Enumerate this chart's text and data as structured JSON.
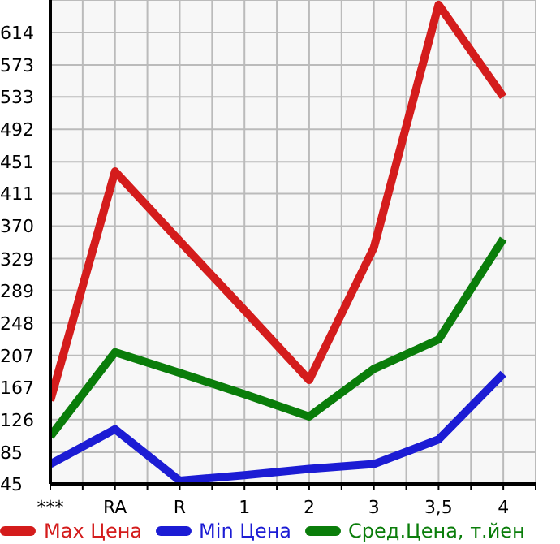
{
  "chart_data": {
    "type": "line",
    "categories": [
      "***",
      "RA",
      "R",
      "1",
      "2",
      "3",
      "3,5",
      "4"
    ],
    "series": [
      {
        "name": "Max Цена",
        "color": "#d41c1c",
        "values": [
          150,
          439,
          351,
          264,
          176,
          343,
          649,
          533
        ]
      },
      {
        "name": "Min Цена",
        "color": "#1c1cd4",
        "values": [
          70,
          114,
          49,
          56,
          64,
          70,
          101,
          184
        ]
      },
      {
        "name": "Сред.Цена, т.йен",
        "color": "#0a7d0a",
        "values": [
          105,
          211,
          185,
          158,
          130,
          190,
          227,
          354
        ]
      }
    ],
    "ylim": [
      45,
      655
    ],
    "yticks": [
      45,
      85,
      126,
      167,
      207,
      248,
      289,
      329,
      370,
      411,
      451,
      492,
      533,
      573,
      614,
      {
        "value": 655,
        "label": null
      }
    ],
    "grid": true,
    "legend": "bottom",
    "marker": "none",
    "line_style": "solid"
  }
}
